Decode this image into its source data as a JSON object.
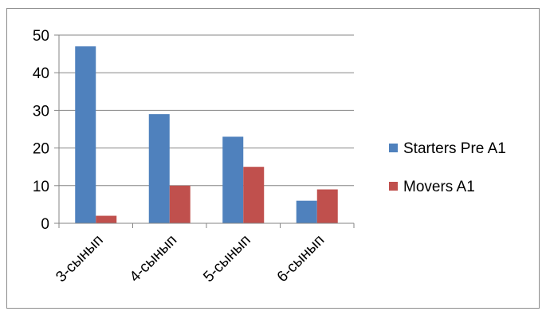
{
  "chart_data": {
    "type": "bar",
    "categories": [
      "3-сынып",
      "4-сынып",
      "5-сынып",
      "6-сынып"
    ],
    "series": [
      {
        "name": "Starters Pre A1",
        "color": "#4F81BD",
        "values": [
          47,
          29,
          23,
          6
        ]
      },
      {
        "name": "Movers A1",
        "color": "#C0504D",
        "values": [
          2,
          10,
          15,
          9
        ]
      }
    ],
    "ylim": [
      0,
      50
    ],
    "yticks": [
      0,
      10,
      20,
      30,
      40,
      50
    ],
    "grid": true,
    "legend_position": "right"
  }
}
